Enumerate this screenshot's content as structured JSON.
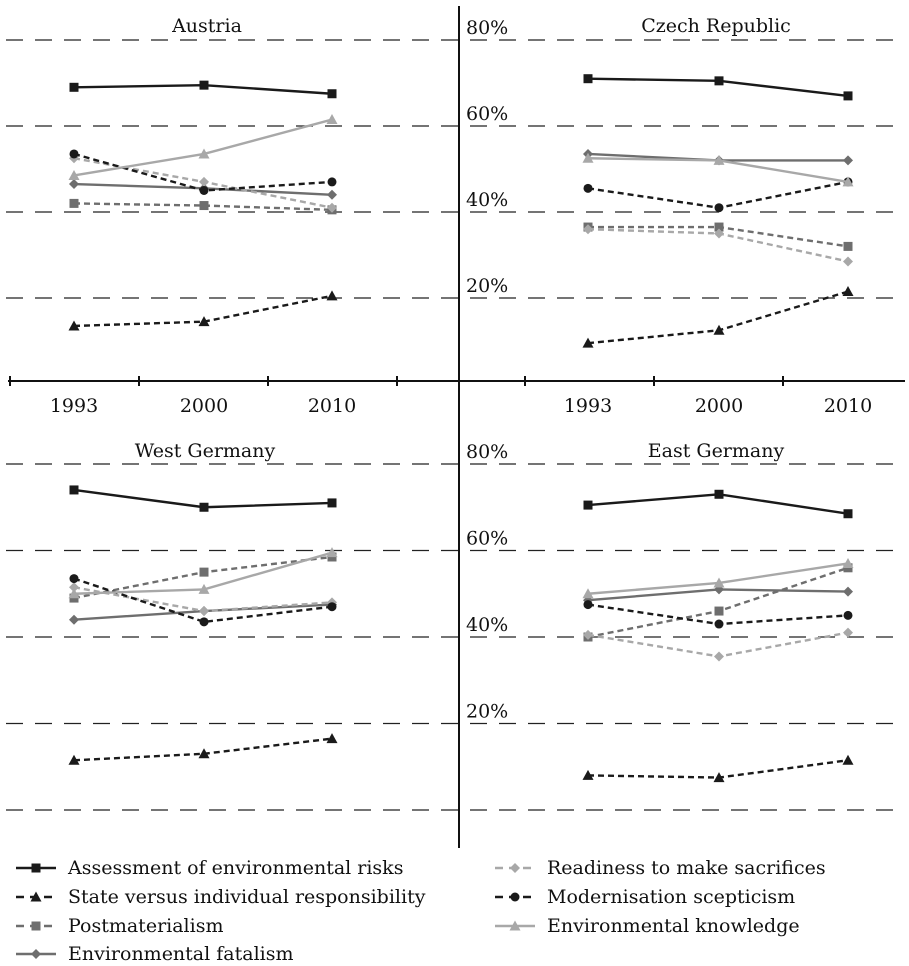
{
  "chart_data": {
    "type": "line",
    "x": [
      "1993",
      "2000",
      "2010"
    ],
    "ylim": [
      0,
      80
    ],
    "yticks": [
      "20%",
      "40%",
      "60%",
      "80%"
    ],
    "grid": "dashed horizontal",
    "legend_placement": "bottom",
    "series_styles": [
      {
        "name": "Assessment of environmental risks",
        "color": "#1a1a1a",
        "dash": "solid",
        "marker": "square"
      },
      {
        "name": "State versus individual responsibility",
        "color": "#1a1a1a",
        "dash": "dashed",
        "marker": "triangle"
      },
      {
        "name": "Postmaterialism",
        "color": "#6e6e6e",
        "dash": "dashed",
        "marker": "square"
      },
      {
        "name": "Environmental fatalism",
        "color": "#6e6e6e",
        "dash": "solid",
        "marker": "diamond"
      },
      {
        "name": "Readiness to make sacrifices",
        "color": "#a8a8a8",
        "dash": "dashed",
        "marker": "diamond"
      },
      {
        "name": "Modernisation scepticism",
        "color": "#1a1a1a",
        "dash": "dashed",
        "marker": "circle"
      },
      {
        "name": "Environmental knowledge",
        "color": "#a8a8a8",
        "dash": "solid",
        "marker": "triangle"
      }
    ],
    "panels": [
      {
        "title": "Austria",
        "series": [
          {
            "name": "Assessment of environmental risks",
            "values": [
              69,
              69.5,
              67.5
            ]
          },
          {
            "name": "State versus individual responsibility",
            "values": [
              13.5,
              14.5,
              20.5
            ]
          },
          {
            "name": "Postmaterialism",
            "values": [
              42,
              41.5,
              40.5
            ]
          },
          {
            "name": "Environmental fatalism",
            "values": [
              46.5,
              45.5,
              44
            ]
          },
          {
            "name": "Readiness to make sacrifices",
            "values": [
              52.5,
              47,
              41
            ]
          },
          {
            "name": "Modernisation scepticism",
            "values": [
              53.5,
              45,
              47
            ]
          },
          {
            "name": "Environmental knowledge",
            "values": [
              48.5,
              53.5,
              61.5
            ]
          }
        ]
      },
      {
        "title": "Czech Republic",
        "series": [
          {
            "name": "Assessment of environmental risks",
            "values": [
              71,
              70.5,
              67
            ]
          },
          {
            "name": "State versus individual responsibility",
            "values": [
              9.5,
              12.5,
              21.5
            ]
          },
          {
            "name": "Postmaterialism",
            "values": [
              36.5,
              36.5,
              32
            ]
          },
          {
            "name": "Environmental fatalism",
            "values": [
              53.5,
              52,
              52
            ]
          },
          {
            "name": "Readiness to make sacrifices",
            "values": [
              36,
              35,
              28.5
            ]
          },
          {
            "name": "Modernisation scepticism",
            "values": [
              45.5,
              41,
              47
            ]
          },
          {
            "name": "Environmental knowledge",
            "values": [
              52.5,
              52,
              47
            ]
          }
        ]
      },
      {
        "title": "West Germany",
        "series": [
          {
            "name": "Assessment of environmental risks",
            "values": [
              74,
              70,
              71
            ]
          },
          {
            "name": "State versus individual responsibility",
            "values": [
              11.5,
              13,
              16.5
            ]
          },
          {
            "name": "Postmaterialism",
            "values": [
              49,
              55,
              58.5
            ]
          },
          {
            "name": "Environmental fatalism",
            "values": [
              44,
              46,
              47.5
            ]
          },
          {
            "name": "Readiness to make sacrifices",
            "values": [
              51.5,
              46,
              48
            ]
          },
          {
            "name": "Modernisation scepticism",
            "values": [
              53.5,
              43.5,
              47
            ]
          },
          {
            "name": "Environmental knowledge",
            "values": [
              50,
              51,
              59.5
            ]
          }
        ]
      },
      {
        "title": "East Germany",
        "series": [
          {
            "name": "Assessment of environmental risks",
            "values": [
              70.5,
              73,
              68.5
            ]
          },
          {
            "name": "State versus individual responsibility",
            "values": [
              8,
              7.5,
              11.5
            ]
          },
          {
            "name": "Postmaterialism",
            "values": [
              40,
              46,
              56
            ]
          },
          {
            "name": "Environmental fatalism",
            "values": [
              48.5,
              51,
              50.5
            ]
          },
          {
            "name": "Readiness to make sacrifices",
            "values": [
              40.5,
              35.5,
              41
            ]
          },
          {
            "name": "Modernisation scepticism",
            "values": [
              47.5,
              43,
              45
            ]
          },
          {
            "name": "Environmental knowledge",
            "values": [
              50,
              52.5,
              57
            ]
          }
        ]
      }
    ]
  }
}
